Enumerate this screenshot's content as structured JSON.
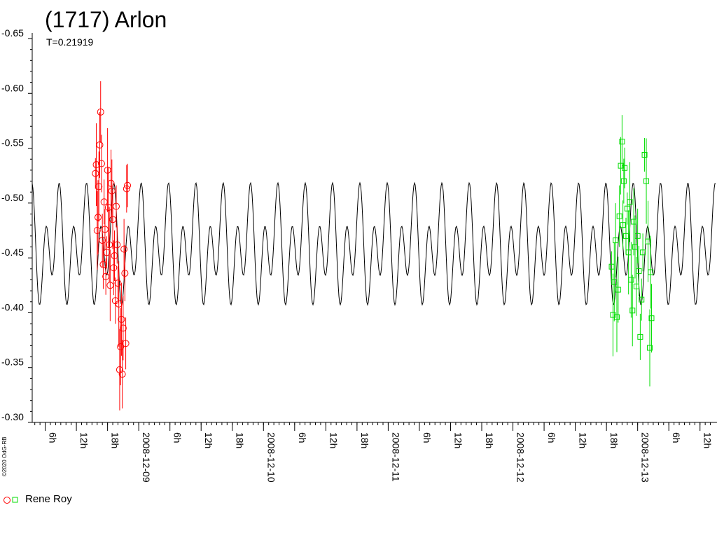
{
  "title": "(1717) Arlon",
  "subtitle": "T=0.21919",
  "copyright": "©2020 OdG-RB",
  "legend": {
    "label": "Rene Roy"
  },
  "chart_data": {
    "type": "scatter",
    "title": "(1717) Arlon",
    "subtitle": "T=0.21919",
    "ylabel": "",
    "xlabel": "",
    "ylim": [
      -0.3,
      -0.65
    ],
    "y_inverted": true,
    "y_ticks": [
      "-0.30",
      "-0.35",
      "-0.40",
      "-0.45",
      "-0.50",
      "-0.55",
      "-0.60",
      "-0.65"
    ],
    "y_tick_values": [
      -0.3,
      -0.35,
      -0.4,
      -0.45,
      -0.5,
      -0.55,
      -0.6,
      -0.65
    ],
    "x_axis": "time (2008-12-08 to 2008-12-13)",
    "x_ticks": [
      {
        "label": "6h",
        "t": "2008-12-08T06:00"
      },
      {
        "label": "12h",
        "t": "2008-12-08T12:00"
      },
      {
        "label": "18h",
        "t": "2008-12-08T18:00"
      },
      {
        "label": "2008-12-09",
        "t": "2008-12-09T00:00"
      },
      {
        "label": "6h",
        "t": "2008-12-09T06:00"
      },
      {
        "label": "12h",
        "t": "2008-12-09T12:00"
      },
      {
        "label": "18h",
        "t": "2008-12-09T18:00"
      },
      {
        "label": "2008-12-10",
        "t": "2008-12-10T00:00"
      },
      {
        "label": "6h",
        "t": "2008-12-10T06:00"
      },
      {
        "label": "12h",
        "t": "2008-12-10T12:00"
      },
      {
        "label": "18h",
        "t": "2008-12-10T18:00"
      },
      {
        "label": "2008-12-11",
        "t": "2008-12-11T00:00"
      },
      {
        "label": "6h",
        "t": "2008-12-11T06:00"
      },
      {
        "label": "12h",
        "t": "2008-12-11T12:00"
      },
      {
        "label": "18h",
        "t": "2008-12-11T18:00"
      },
      {
        "label": "2008-12-12",
        "t": "2008-12-12T00:00"
      },
      {
        "label": "6h",
        "t": "2008-12-12T06:00"
      },
      {
        "label": "12h",
        "t": "2008-12-12T12:00"
      },
      {
        "label": "18h",
        "t": "2008-12-12T18:00"
      },
      {
        "label": "2008-12-13",
        "t": "2008-12-13T00:00"
      },
      {
        "label": "6h",
        "t": "2008-12-13T06:00"
      },
      {
        "label": "12h",
        "t": "2008-12-13T12:00"
      }
    ],
    "model_curve": {
      "color": "#000000",
      "period_h": 5.26,
      "mean": -0.46,
      "amp_max": -0.52,
      "amp_min": -0.405
    },
    "series": [
      {
        "name": "Rene Roy",
        "marker": "circle",
        "color": "#ff0000",
        "points": [
          {
            "t": "2008-12-08T15:40",
            "y": -0.527
          },
          {
            "t": "2008-12-08T15:50",
            "y": -0.535
          },
          {
            "t": "2008-12-08T16:00",
            "y": -0.475
          },
          {
            "t": "2008-12-08T16:10",
            "y": -0.487
          },
          {
            "t": "2008-12-08T16:20",
            "y": -0.515
          },
          {
            "t": "2008-12-08T16:30",
            "y": -0.553
          },
          {
            "t": "2008-12-08T16:40",
            "y": -0.583
          },
          {
            "t": "2008-12-08T16:50",
            "y": -0.536
          },
          {
            "t": "2008-12-08T17:00",
            "y": -0.466
          },
          {
            "t": "2008-12-08T17:10",
            "y": -0.444
          },
          {
            "t": "2008-12-08T17:20",
            "y": -0.501
          },
          {
            "t": "2008-12-08T17:30",
            "y": -0.476
          },
          {
            "t": "2008-12-08T17:40",
            "y": -0.433
          },
          {
            "t": "2008-12-08T17:50",
            "y": -0.455
          },
          {
            "t": "2008-12-08T18:00",
            "y": -0.53
          },
          {
            "t": "2008-12-08T18:10",
            "y": -0.496
          },
          {
            "t": "2008-12-08T18:20",
            "y": -0.462
          },
          {
            "t": "2008-12-08T18:30",
            "y": -0.425
          },
          {
            "t": "2008-12-08T18:40",
            "y": -0.518
          },
          {
            "t": "2008-12-08T18:50",
            "y": -0.511
          },
          {
            "t": "2008-12-08T19:00",
            "y": -0.485
          },
          {
            "t": "2008-12-08T19:10",
            "y": -0.441
          },
          {
            "t": "2008-12-08T19:20",
            "y": -0.452
          },
          {
            "t": "2008-12-08T19:30",
            "y": -0.411
          },
          {
            "t": "2008-12-08T19:40",
            "y": -0.497
          },
          {
            "t": "2008-12-08T19:50",
            "y": -0.462
          },
          {
            "t": "2008-12-08T20:00",
            "y": -0.427
          },
          {
            "t": "2008-12-08T20:10",
            "y": -0.408
          },
          {
            "t": "2008-12-08T20:20",
            "y": -0.348
          },
          {
            "t": "2008-12-08T20:30",
            "y": -0.369
          },
          {
            "t": "2008-12-08T20:40",
            "y": -0.394
          },
          {
            "t": "2008-12-08T20:50",
            "y": -0.344
          },
          {
            "t": "2008-12-08T21:00",
            "y": -0.386
          },
          {
            "t": "2008-12-08T21:10",
            "y": -0.458
          },
          {
            "t": "2008-12-08T21:20",
            "y": -0.436
          },
          {
            "t": "2008-12-08T21:30",
            "y": -0.372
          },
          {
            "t": "2008-12-08T21:40",
            "y": -0.513
          },
          {
            "t": "2008-12-08T21:50",
            "y": -0.516
          }
        ]
      },
      {
        "name": "Rene Roy",
        "marker": "square",
        "color": "#00dd00",
        "points": [
          {
            "t": "2008-12-12T19:00",
            "y": -0.442
          },
          {
            "t": "2008-12-12T19:15",
            "y": -0.398
          },
          {
            "t": "2008-12-12T19:30",
            "y": -0.428
          },
          {
            "t": "2008-12-12T19:45",
            "y": -0.466
          },
          {
            "t": "2008-12-12T20:00",
            "y": -0.396
          },
          {
            "t": "2008-12-12T20:15",
            "y": -0.421
          },
          {
            "t": "2008-12-12T20:30",
            "y": -0.488
          },
          {
            "t": "2008-12-12T20:45",
            "y": -0.534
          },
          {
            "t": "2008-12-12T21:00",
            "y": -0.556
          },
          {
            "t": "2008-12-12T21:10",
            "y": -0.48
          },
          {
            "t": "2008-12-12T21:20",
            "y": -0.52
          },
          {
            "t": "2008-12-12T21:30",
            "y": -0.532
          },
          {
            "t": "2008-12-12T21:45",
            "y": -0.47
          },
          {
            "t": "2008-12-12T22:00",
            "y": -0.495
          },
          {
            "t": "2008-12-12T22:15",
            "y": -0.455
          },
          {
            "t": "2008-12-12T22:30",
            "y": -0.501
          },
          {
            "t": "2008-12-12T22:45",
            "y": -0.43
          },
          {
            "t": "2008-12-12T23:00",
            "y": -0.402
          },
          {
            "t": "2008-12-12T23:15",
            "y": -0.483
          },
          {
            "t": "2008-12-12T23:30",
            "y": -0.46
          },
          {
            "t": "2008-12-12T23:45",
            "y": -0.424
          },
          {
            "t": "2008-12-13T00:00",
            "y": -0.47
          },
          {
            "t": "2008-12-13T00:15",
            "y": -0.438
          },
          {
            "t": "2008-12-13T00:30",
            "y": -0.378
          },
          {
            "t": "2008-12-13T00:45",
            "y": -0.412
          },
          {
            "t": "2008-12-13T01:00",
            "y": -0.455
          },
          {
            "t": "2008-12-13T01:20",
            "y": -0.544
          },
          {
            "t": "2008-12-13T01:40",
            "y": -0.52
          },
          {
            "t": "2008-12-13T02:00",
            "y": -0.465
          },
          {
            "t": "2008-12-13T02:20",
            "y": -0.368
          },
          {
            "t": "2008-12-13T02:30",
            "y": -0.437
          },
          {
            "t": "2008-12-13T02:40",
            "y": -0.395
          }
        ]
      }
    ],
    "grid": false,
    "legend_position": "bottom-left"
  }
}
